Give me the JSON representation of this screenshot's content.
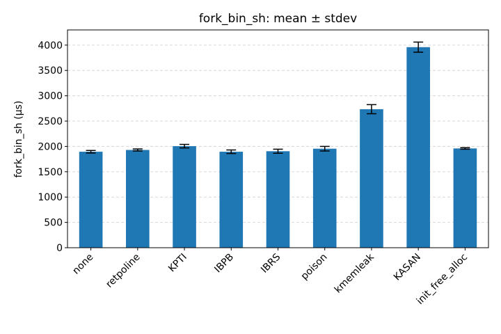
{
  "chart_data": {
    "type": "bar",
    "title": "fork_bin_sh: mean ± stdev",
    "xlabel": "",
    "ylabel": "fork_bin_sh (µs)",
    "categories": [
      "none",
      "retpoline",
      "KPTI",
      "IBPB",
      "IBRS",
      "poison",
      "kmemleak",
      "KASAN",
      "init_free_alloc"
    ],
    "values": [
      1895,
      1930,
      2005,
      1895,
      1905,
      1955,
      2735,
      3960,
      1960
    ],
    "errors": [
      25,
      20,
      35,
      35,
      40,
      45,
      90,
      100,
      15
    ],
    "ylim": [
      0,
      4300
    ],
    "yticks": [
      0,
      500,
      1000,
      1500,
      2000,
      2500,
      3000,
      3500,
      4000
    ],
    "grid": "y-dashed",
    "bar_color": "#1f77b4",
    "error_color": "#000000"
  }
}
